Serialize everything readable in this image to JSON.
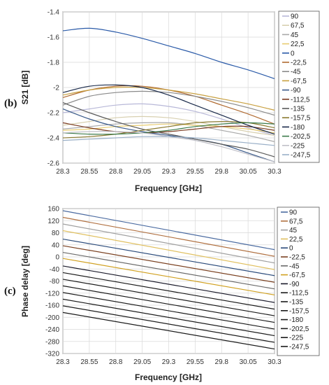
{
  "chart_data": [
    {
      "type": "line",
      "panel_label": "(b)",
      "xlabel": "Frequency [GHz]",
      "ylabel": "S21 [dB]",
      "xlim": [
        28.3,
        30.3
      ],
      "ylim": [
        -2.6,
        -1.4
      ],
      "x_ticks": [
        "28.3",
        "28.55",
        "28.8",
        "29.05",
        "29.3",
        "29.55",
        "29.8",
        "30.05",
        "30.3"
      ],
      "y_ticks": [
        "-1.4",
        "-1.6",
        "-1.8",
        "-2",
        "-2.2",
        "-2.4",
        "-2.6"
      ],
      "grid": true,
      "legend_position": "right",
      "x": [
        28.3,
        28.55,
        28.8,
        29.05,
        29.3,
        29.55,
        29.8,
        30.05,
        30.3
      ],
      "series": [
        {
          "name": "90",
          "color": "#b8b8d8",
          "values": [
            -2.2,
            -2.17,
            -2.14,
            -2.13,
            -2.15,
            -2.19,
            -2.25,
            -2.32,
            -2.38
          ]
        },
        {
          "name": "67,5",
          "color": "#d8d0b0",
          "values": [
            -2.3,
            -2.27,
            -2.24,
            -2.23,
            -2.24,
            -2.27,
            -2.31,
            -2.35,
            -2.38
          ]
        },
        {
          "name": "45",
          "color": "#a8a8a8",
          "values": [
            -2.33,
            -2.31,
            -2.29,
            -2.28,
            -2.28,
            -2.3,
            -2.34,
            -2.38,
            -2.43
          ]
        },
        {
          "name": "22,5",
          "color": "#e8cc70",
          "values": [
            -2.34,
            -2.33,
            -2.31,
            -2.3,
            -2.29,
            -2.3,
            -2.31,
            -2.33,
            -2.36
          ]
        },
        {
          "name": "0",
          "color": "#2a5aa8",
          "values": [
            -1.55,
            -1.53,
            -1.56,
            -1.61,
            -1.67,
            -1.73,
            -1.8,
            -1.86,
            -1.93
          ]
        },
        {
          "name": "-22,5",
          "color": "#b06a30",
          "values": [
            -2.08,
            -2.02,
            -1.99,
            -1.99,
            -2.02,
            -2.07,
            -2.14,
            -2.21,
            -2.29
          ]
        },
        {
          "name": "-45",
          "color": "#8a8a8a",
          "values": [
            -2.14,
            -2.07,
            -2.04,
            -2.03,
            -2.04,
            -2.07,
            -2.11,
            -2.16,
            -2.22
          ]
        },
        {
          "name": "-67,5",
          "color": "#c8a040",
          "values": [
            -2.06,
            -2.02,
            -2.0,
            -2.0,
            -2.02,
            -2.05,
            -2.09,
            -2.13,
            -2.18
          ]
        },
        {
          "name": "-90",
          "color": "#3a5a8a",
          "values": [
            -2.17,
            -2.25,
            -2.31,
            -2.35,
            -2.38,
            -2.41,
            -2.45,
            -2.52,
            -2.59
          ]
        },
        {
          "name": "-112,5",
          "color": "#7a3a20",
          "values": [
            -2.28,
            -2.32,
            -2.35,
            -2.36,
            -2.35,
            -2.33,
            -2.31,
            -2.31,
            -2.34
          ]
        },
        {
          "name": "-135",
          "color": "#5a5a5a",
          "values": [
            -2.12,
            -2.2,
            -2.27,
            -2.33,
            -2.37,
            -2.41,
            -2.45,
            -2.49,
            -2.55
          ]
        },
        {
          "name": "-157,5",
          "color": "#8a7a30",
          "values": [
            -2.4,
            -2.39,
            -2.37,
            -2.34,
            -2.31,
            -2.28,
            -2.27,
            -2.28,
            -2.32
          ]
        },
        {
          "name": "-180",
          "color": "#1a2a4a",
          "values": [
            -2.04,
            -1.99,
            -1.98,
            -2.0,
            -2.06,
            -2.14,
            -2.22,
            -2.3,
            -2.37
          ]
        },
        {
          "name": "-202,5",
          "color": "#3a7a4a",
          "values": [
            -2.36,
            -2.37,
            -2.37,
            -2.36,
            -2.34,
            -2.31,
            -2.29,
            -2.28,
            -2.29
          ]
        },
        {
          "name": "-225",
          "color": "#c0c0c8",
          "values": [
            -2.36,
            -2.35,
            -2.35,
            -2.36,
            -2.39,
            -2.42,
            -2.47,
            -2.53,
            -2.59
          ]
        },
        {
          "name": "-247,5",
          "color": "#9ab0c8",
          "values": [
            -2.42,
            -2.41,
            -2.4,
            -2.39,
            -2.39,
            -2.4,
            -2.42,
            -2.44,
            -2.46
          ]
        }
      ]
    },
    {
      "type": "line",
      "panel_label": "(c)",
      "xlabel": "Frequency [GHz]",
      "ylabel": "Phase delay [deg]",
      "xlim": [
        28.3,
        30.3
      ],
      "ylim": [
        -320,
        160
      ],
      "x_ticks": [
        "28.3",
        "28.55",
        "28.8",
        "29.05",
        "29.3",
        "29.55",
        "29.8",
        "30.05",
        "30.3"
      ],
      "y_ticks": [
        "160",
        "120",
        "80",
        "40",
        "0",
        "-40",
        "-80",
        "-120",
        "-160",
        "-200",
        "-240",
        "-280",
        "-320"
      ],
      "grid": true,
      "legend_position": "right",
      "x": [
        28.3,
        30.3
      ],
      "series": [
        {
          "name": "90",
          "color": "#4a6aa0",
          "values": [
            153,
            24
          ]
        },
        {
          "name": "67,5",
          "color": "#b07040",
          "values": [
            131,
            2
          ]
        },
        {
          "name": "45",
          "color": "#a0a0a0",
          "values": [
            109,
            -20
          ]
        },
        {
          "name": "22,5",
          "color": "#e0c060",
          "values": [
            87,
            -42
          ]
        },
        {
          "name": "0",
          "color": "#2a4a7a",
          "values": [
            59,
            -62
          ]
        },
        {
          "name": "-22,5",
          "color": "#7a4020",
          "values": [
            37,
            -84
          ]
        },
        {
          "name": "-45",
          "color": "#6a6a6a",
          "values": [
            15,
            -106
          ]
        },
        {
          "name": "-67,5",
          "color": "#d0a020",
          "values": [
            -5,
            -126
          ]
        },
        {
          "name": "-90",
          "color": "#1a1a2a",
          "values": [
            -30,
            -151
          ]
        },
        {
          "name": "-112,5",
          "color": "#1a1a1a",
          "values": [
            -52,
            -173
          ]
        },
        {
          "name": "-135",
          "color": "#1a1a1a",
          "values": [
            -74,
            -195
          ]
        },
        {
          "name": "-157,5",
          "color": "#1a1a1a",
          "values": [
            -96,
            -217
          ]
        },
        {
          "name": "-180",
          "color": "#1a1a1a",
          "values": [
            -118,
            -239
          ]
        },
        {
          "name": "-202,5",
          "color": "#1a1a1a",
          "values": [
            -140,
            -261
          ]
        },
        {
          "name": "-225",
          "color": "#1a1a1a",
          "values": [
            -162,
            -283
          ]
        },
        {
          "name": "-247,5",
          "color": "#1a1a1a",
          "values": [
            -184,
            -305
          ]
        }
      ]
    }
  ]
}
